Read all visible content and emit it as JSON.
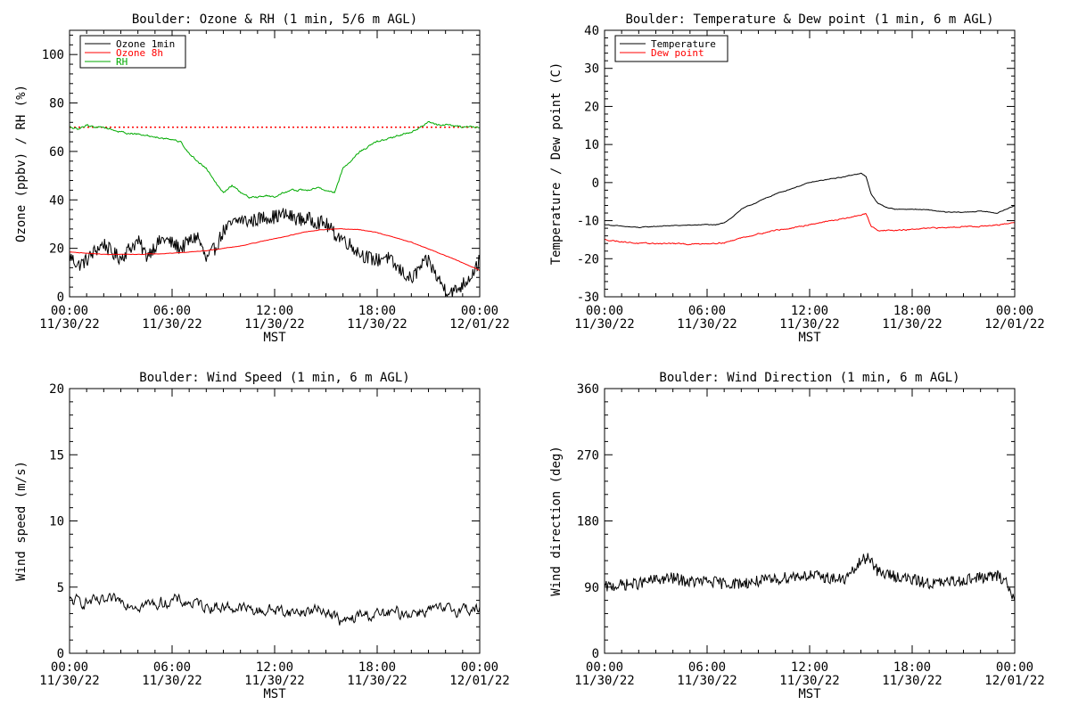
{
  "chart_data": [
    {
      "type": "line",
      "title": "Boulder: Ozone & RH (1 min, 5/6 m AGL)",
      "xlabel": "MST",
      "ylabel": "Ozone (ppbv) / RH (%)",
      "xlim": [
        "11/30/22 00:00",
        "12/01/22 00:00"
      ],
      "ylim": [
        0,
        110
      ],
      "yticks": [
        "0",
        "20",
        "40",
        "60",
        "80",
        "100"
      ],
      "yticks_values": [
        0,
        20,
        40,
        60,
        80,
        100
      ],
      "xticks": [
        {
          "time": "00:00",
          "date": "11/30/22"
        },
        {
          "time": "06:00",
          "date": "11/30/22"
        },
        {
          "time": "12:00",
          "date": "11/30/22"
        },
        {
          "time": "18:00",
          "date": "11/30/22"
        },
        {
          "time": "00:00",
          "date": "12/01/22"
        }
      ],
      "xticks_hours": [
        0,
        6,
        12,
        18,
        24
      ],
      "legend_position": "top-left",
      "reference_line": {
        "y": 70,
        "color": "#ff0000",
        "style": "dotted"
      },
      "series": [
        {
          "name": "Ozone 1min",
          "color": "#000000",
          "noise": 3.0,
          "x": [
            0,
            0.5,
            1,
            1.5,
            2,
            2.5,
            3,
            3.5,
            4,
            4.5,
            5,
            5.5,
            6,
            6.5,
            7,
            7.5,
            8,
            8.5,
            9,
            9.5,
            10,
            10.5,
            11,
            11.5,
            12,
            12.5,
            13,
            13.5,
            14,
            14.5,
            15,
            15.5,
            16,
            16.5,
            17,
            17.5,
            18,
            18.5,
            19,
            19.5,
            20,
            20.5,
            21,
            21.5,
            22,
            22.5,
            23,
            23.5,
            24
          ],
          "y": [
            17,
            13,
            15,
            19,
            22,
            18,
            16,
            20,
            23,
            17,
            21,
            24,
            22,
            20,
            23,
            25,
            15,
            20,
            27,
            30,
            32,
            31,
            32,
            33,
            33,
            34,
            33,
            32,
            32,
            31,
            30,
            26,
            24,
            21,
            18,
            16,
            15,
            17,
            13,
            10,
            7,
            12,
            15,
            8,
            3,
            2,
            5,
            9,
            15
          ]
        },
        {
          "name": "Ozone 8h",
          "color": "#ff0000",
          "noise": 0.2,
          "x": [
            0,
            2,
            4,
            6,
            8,
            10,
            12,
            14,
            15,
            16,
            17,
            18,
            20,
            22,
            24
          ],
          "y": [
            18.5,
            17.5,
            17.5,
            18,
            19,
            21,
            24,
            27,
            27.8,
            28,
            27.7,
            26.5,
            22.5,
            17,
            11
          ]
        },
        {
          "name": "RH",
          "color": "#00aa00",
          "noise": 0.8,
          "x": [
            0,
            0.5,
            1,
            1.5,
            2,
            3,
            4,
            5,
            6,
            6.5,
            7,
            7.5,
            8,
            8.5,
            9,
            9.5,
            10,
            10.5,
            11,
            11.5,
            12,
            12.5,
            13,
            13.5,
            14,
            14.5,
            15,
            15.5,
            16,
            17,
            18,
            19,
            20,
            20.5,
            21,
            21.5,
            22,
            23,
            24
          ],
          "y": [
            70,
            69,
            71,
            70,
            70,
            68,
            67,
            66,
            65,
            64,
            59,
            56,
            53,
            48,
            43,
            46,
            43,
            41,
            41,
            42,
            41,
            43,
            44,
            44,
            44,
            45,
            44,
            43,
            53,
            60,
            64,
            66,
            68,
            70,
            72,
            71,
            71,
            70,
            70
          ]
        }
      ]
    },
    {
      "type": "line",
      "title": "Boulder: Temperature & Dew point (1 min, 6 m AGL)",
      "xlabel": "MST",
      "ylabel": "Temperature / Dew point (C)",
      "xlim": [
        "11/30/22 00:00",
        "12/01/22 00:00"
      ],
      "ylim": [
        -30,
        40
      ],
      "yticks": [
        "-30",
        "-20",
        "-10",
        "0",
        "10",
        "20",
        "30",
        "40"
      ],
      "yticks_values": [
        -30,
        -20,
        -10,
        0,
        10,
        20,
        30,
        40
      ],
      "xticks": [
        {
          "time": "00:00",
          "date": "11/30/22"
        },
        {
          "time": "06:00",
          "date": "11/30/22"
        },
        {
          "time": "12:00",
          "date": "11/30/22"
        },
        {
          "time": "18:00",
          "date": "11/30/22"
        },
        {
          "time": "00:00",
          "date": "12/01/22"
        }
      ],
      "xticks_hours": [
        0,
        6,
        12,
        18,
        24
      ],
      "legend_position": "top-left",
      "series": [
        {
          "name": "Temperature",
          "color": "#000000",
          "noise": 0.2,
          "x": [
            0,
            1,
            2,
            3,
            4,
            5,
            6,
            6.5,
            7,
            7.5,
            8,
            9,
            10,
            11,
            12,
            13,
            14,
            14.5,
            15,
            15.3,
            15.6,
            16,
            16.5,
            17,
            18,
            19,
            20,
            21,
            22,
            23,
            24
          ],
          "y": [
            -11,
            -11.5,
            -11.8,
            -11.5,
            -11.3,
            -11.2,
            -11,
            -11.2,
            -10.5,
            -9,
            -7,
            -5,
            -3,
            -1.5,
            0,
            0.8,
            1.5,
            2,
            2.5,
            1.5,
            -3,
            -5.5,
            -6.5,
            -7,
            -7,
            -7.2,
            -7.8,
            -7.8,
            -7.5,
            -8,
            -6
          ]
        },
        {
          "name": "Dew point",
          "color": "#ff0000",
          "noise": 0.3,
          "x": [
            0,
            1,
            2,
            3,
            4,
            5,
            6,
            7,
            7.5,
            8,
            9,
            10,
            11,
            12,
            13,
            14,
            15,
            15.3,
            15.6,
            16,
            17,
            18,
            19,
            20,
            21,
            22,
            23,
            24
          ],
          "y": [
            -15,
            -15.5,
            -16,
            -16,
            -16,
            -16.2,
            -16,
            -15.8,
            -15.2,
            -14.5,
            -13.5,
            -12.5,
            -12,
            -11,
            -10.2,
            -9.5,
            -8.5,
            -8.2,
            -11.5,
            -12.5,
            -12.6,
            -12.3,
            -12,
            -11.8,
            -11.5,
            -11.5,
            -11.2,
            -10.5
          ]
        }
      ]
    },
    {
      "type": "line",
      "title": "Boulder: Wind Speed (1 min, 6 m AGL)",
      "xlabel": "MST",
      "ylabel": "Wind speed (m/s)",
      "xlim": [
        "11/30/22 00:00",
        "12/01/22 00:00"
      ],
      "ylim": [
        0,
        20
      ],
      "yticks": [
        "0",
        "5",
        "10",
        "15",
        "20"
      ],
      "yticks_values": [
        0,
        5,
        10,
        15,
        20
      ],
      "xticks": [
        {
          "time": "00:00",
          "date": "11/30/22"
        },
        {
          "time": "06:00",
          "date": "11/30/22"
        },
        {
          "time": "12:00",
          "date": "11/30/22"
        },
        {
          "time": "18:00",
          "date": "11/30/22"
        },
        {
          "time": "00:00",
          "date": "12/01/22"
        }
      ],
      "xticks_hours": [
        0,
        6,
        12,
        18,
        24
      ],
      "series": [
        {
          "name": "",
          "color": "#000000",
          "noise": 0.9,
          "x": [
            0,
            1,
            2,
            3,
            4,
            5,
            6,
            7,
            8,
            9,
            10,
            11,
            12,
            13,
            14,
            15,
            15.5,
            16,
            16.5,
            17,
            18,
            19,
            20,
            21,
            22,
            23,
            24
          ],
          "y": [
            3.9,
            3.9,
            3.8,
            4,
            3.7,
            3.7,
            4,
            3.8,
            3.6,
            3.5,
            3.4,
            3.2,
            3.3,
            3.1,
            3.2,
            3.3,
            2.8,
            2.3,
            2.5,
            2.9,
            2.9,
            3,
            3.1,
            3.3,
            3.2,
            3.4,
            3.3
          ]
        }
      ]
    },
    {
      "type": "line",
      "title": "Boulder: Wind Direction (1 min, 6 m AGL)",
      "xlabel": "MST",
      "ylabel": "Wind direction (deg)",
      "xlim": [
        "11/30/22 00:00",
        "12/01/22 00:00"
      ],
      "ylim": [
        0,
        360
      ],
      "yticks": [
        "0",
        "90",
        "180",
        "270",
        "360"
      ],
      "yticks_values": [
        0,
        90,
        180,
        270,
        360
      ],
      "xticks": [
        {
          "time": "00:00",
          "date": "11/30/22"
        },
        {
          "time": "06:00",
          "date": "11/30/22"
        },
        {
          "time": "12:00",
          "date": "11/30/22"
        },
        {
          "time": "18:00",
          "date": "11/30/22"
        },
        {
          "time": "00:00",
          "date": "12/01/22"
        }
      ],
      "xticks_hours": [
        0,
        6,
        12,
        18,
        24
      ],
      "series": [
        {
          "name": "",
          "color": "#000000",
          "noise": 8,
          "x": [
            0,
            1,
            2,
            3,
            4,
            5,
            6,
            7,
            8,
            9,
            10,
            11,
            12,
            13,
            14,
            14.5,
            15,
            15.5,
            16,
            17,
            18,
            19,
            20,
            21,
            22,
            23,
            23.5,
            24
          ],
          "y": [
            90,
            93,
            95,
            100,
            102,
            97,
            98,
            95,
            95,
            98,
            100,
            105,
            106,
            103,
            100,
            110,
            125,
            132,
            110,
            105,
            100,
            95,
            96,
            100,
            103,
            105,
            98,
            70
          ]
        }
      ]
    }
  ]
}
